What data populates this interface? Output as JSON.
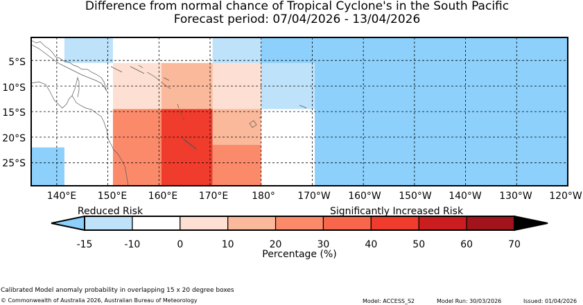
{
  "title": {
    "line1": "Difference from normal chance of Tropical Cyclone's in the South Pacific",
    "line2": "Forecast period: 07/04/2026 - 13/04/2026"
  },
  "map": {
    "lat_labels": [
      "5°S",
      "10°S",
      "15°S",
      "20°S",
      "25°S"
    ],
    "lon_labels": [
      "140°E",
      "150°E",
      "160°E",
      "170°E",
      "180°",
      "170°W",
      "160°W",
      "150°W",
      "140°W",
      "130°W",
      "120°W"
    ],
    "extent": {
      "lon_min": 135,
      "lon_max": 240,
      "lat_min": -29.5,
      "lat_max": -0.5
    },
    "colors": {
      "blue_dark": "#8cd0fb",
      "blue_light": "#bde2fa",
      "white": "#ffffff",
      "pink_light": "#fde0d3",
      "salmon_light": "#fbb99b",
      "salmon": "#fb8a6a",
      "red": "#ef3c2c"
    },
    "cells": [
      {
        "lon": [
          135,
          141.5
        ],
        "lat": [
          -29.5,
          -22
        ],
        "fill": "blue_dark"
      },
      {
        "lon": [
          141.5,
          151
        ],
        "lat": [
          -5.5,
          -0.5
        ],
        "fill": "blue_light"
      },
      {
        "lon": [
          151,
          160.5
        ],
        "lat": [
          -14.5,
          -5.5
        ],
        "fill": "pink_light"
      },
      {
        "lon": [
          160.5,
          170.5
        ],
        "lat": [
          -14.5,
          -5.5
        ],
        "fill": "salmon_light"
      },
      {
        "lon": [
          170.5,
          180
        ],
        "lat": [
          -14.5,
          -5.5
        ],
        "fill": "pink_light"
      },
      {
        "lon": [
          170.5,
          180
        ],
        "lat": [
          -5.5,
          -0.5
        ],
        "fill": "blue_light"
      },
      {
        "lon": [
          180,
          190.5
        ],
        "lat": [
          -5.5,
          -0.5
        ],
        "fill": "blue_dark"
      },
      {
        "lon": [
          180,
          190.5
        ],
        "lat": [
          -14.5,
          -5.5
        ],
        "fill": "blue_light"
      },
      {
        "lon": [
          190.5,
          240
        ],
        "lat": [
          -29.5,
          -0.5
        ],
        "fill": "blue_dark"
      },
      {
        "lon": [
          151,
          160.5
        ],
        "lat": [
          -29.5,
          -14.5
        ],
        "fill": "salmon"
      },
      {
        "lon": [
          160.5,
          170.5
        ],
        "lat": [
          -29.5,
          -14.5
        ],
        "fill": "red"
      },
      {
        "lon": [
          170.5,
          180
        ],
        "lat": [
          -21.5,
          -14.5
        ],
        "fill": "salmon_light"
      },
      {
        "lon": [
          170.5,
          180
        ],
        "lat": [
          -29.5,
          -21.5
        ],
        "fill": "salmon"
      }
    ]
  },
  "legend": {
    "reduced_label": "Reduced Risk",
    "increased_label": "Significantly Increased Risk",
    "ticks": [
      "-15",
      "-10",
      "0",
      "10",
      "20",
      "30",
      "40",
      "50",
      "60",
      "70"
    ],
    "xlabel": "Percentage (%)",
    "under_color": "#8cd0fb",
    "over_color": "#000000",
    "bins": [
      {
        "from": "-15",
        "to": "-10",
        "color": "#bde2fa"
      },
      {
        "from": "-10",
        "to": "0",
        "color": "#ffffff"
      },
      {
        "from": "0",
        "to": "10",
        "color": "#fde0d3"
      },
      {
        "from": "10",
        "to": "20",
        "color": "#fbb99b"
      },
      {
        "from": "20",
        "to": "30",
        "color": "#fb8a6a"
      },
      {
        "from": "30",
        "to": "40",
        "color": "#f8674c"
      },
      {
        "from": "40",
        "to": "50",
        "color": "#ef3c2c"
      },
      {
        "from": "50",
        "to": "60",
        "color": "#c91d20"
      },
      {
        "from": "60",
        "to": "70",
        "color": "#a2141c"
      }
    ]
  },
  "footer": {
    "note": "Calibrated Model anomaly probability in overlapping 15 x 20 degree boxes",
    "copyright": "© Commonwealth of Australia 2026, Australian Bureau of Meteorology",
    "model": "Model: ACCESS_S2",
    "model_run": "Model Run: 30/03/2026",
    "issued": "Issued: 01/04/2026"
  }
}
